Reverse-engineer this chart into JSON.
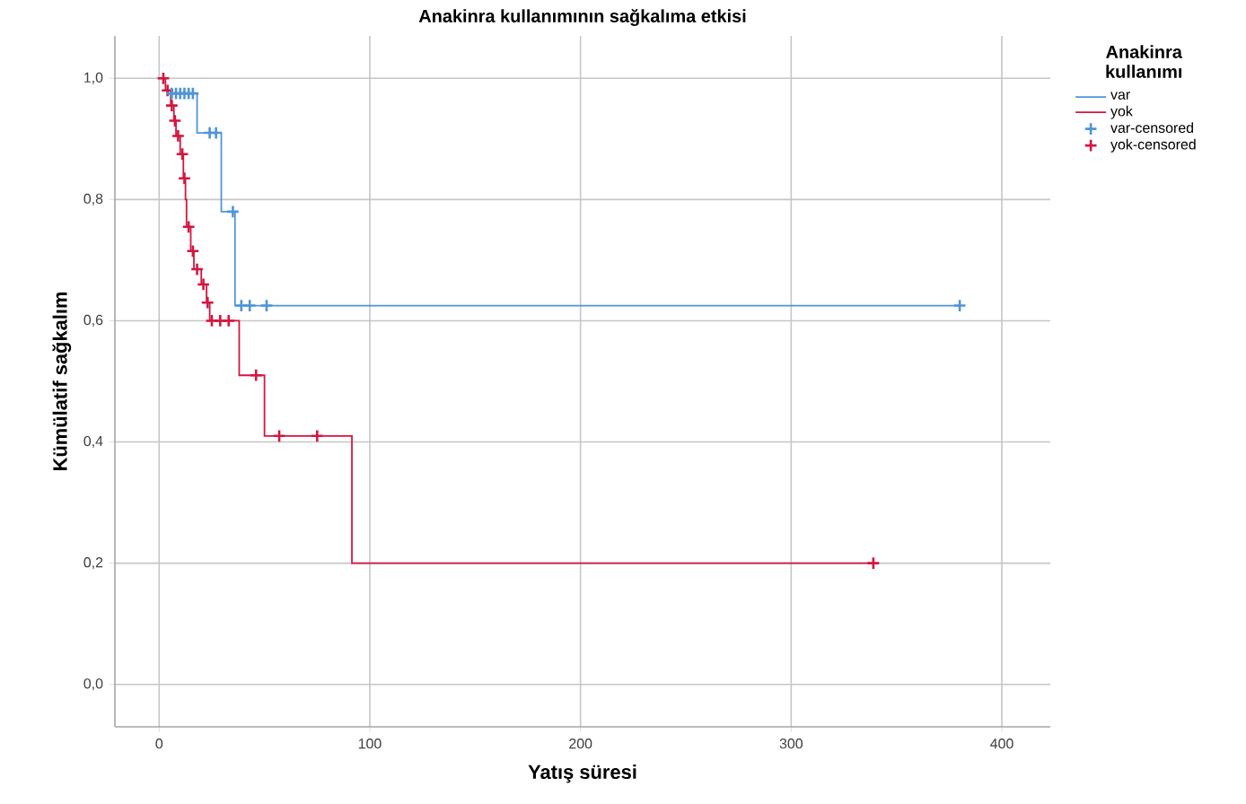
{
  "chart_data": {
    "type": "step",
    "title": "Anakinra kullanımının sağkalıma etkisi",
    "xlabel": "Yatış süresi",
    "ylabel": "Kümülatif sağkalım",
    "legend_title": "Anakinra kullanımı",
    "legend": "right",
    "grid": true,
    "xlim": [
      -21,
      423
    ],
    "xticks": [
      0,
      100,
      200,
      300,
      400
    ],
    "ylim": [
      -0.07,
      1.07
    ],
    "yticks": [
      {
        "value": 0,
        "label": "0,0"
      },
      {
        "value": 0.2,
        "label": "0,2"
      },
      {
        "value": 0.4,
        "label": "0,4"
      },
      {
        "value": 0.6,
        "label": "0,6"
      },
      {
        "value": 0.8,
        "label": "0,8"
      },
      {
        "value": 1,
        "label": "1,0"
      }
    ],
    "series": [
      {
        "name": "var",
        "color": "#4f94d8",
        "marker": "none",
        "x": [
          4,
          18,
          29.5,
          36,
          380
        ],
        "values": [
          0.975,
          0.91,
          0.78,
          0.625,
          0.625
        ]
      },
      {
        "name": "yok",
        "color": "#d4163f",
        "marker": "none",
        "x": [
          0,
          3,
          5.5,
          7,
          8,
          10,
          11.5,
          12.5,
          13,
          15,
          16.5,
          20,
          22.5,
          24,
          38,
          50,
          91.5,
          339
        ],
        "values": [
          1,
          0.98,
          0.955,
          0.93,
          0.905,
          0.875,
          0.835,
          0.8,
          0.755,
          0.715,
          0.685,
          0.66,
          0.63,
          0.6,
          0.51,
          0.41,
          0.2,
          0.2
        ]
      },
      {
        "name": "var-censored",
        "type": "scatter",
        "color": "#4f94d8",
        "marker": "cross",
        "x": [
          6,
          8,
          10,
          12,
          14,
          16,
          24,
          27,
          35,
          39,
          43,
          51,
          380
        ],
        "values": [
          0.975,
          0.975,
          0.975,
          0.975,
          0.975,
          0.975,
          0.91,
          0.91,
          0.78,
          0.625,
          0.625,
          0.625,
          0.625
        ]
      },
      {
        "name": "yok-censored",
        "type": "scatter",
        "color": "#d4163f",
        "marker": "cross",
        "x": [
          2,
          4,
          6,
          7.5,
          9,
          11,
          12,
          14,
          16,
          18,
          21,
          23,
          25,
          29,
          33,
          46,
          57,
          75,
          339
        ],
        "values": [
          1,
          0.98,
          0.955,
          0.93,
          0.905,
          0.875,
          0.835,
          0.755,
          0.715,
          0.685,
          0.66,
          0.63,
          0.6,
          0.6,
          0.6,
          0.51,
          0.41,
          0.41,
          0.2
        ]
      }
    ]
  }
}
